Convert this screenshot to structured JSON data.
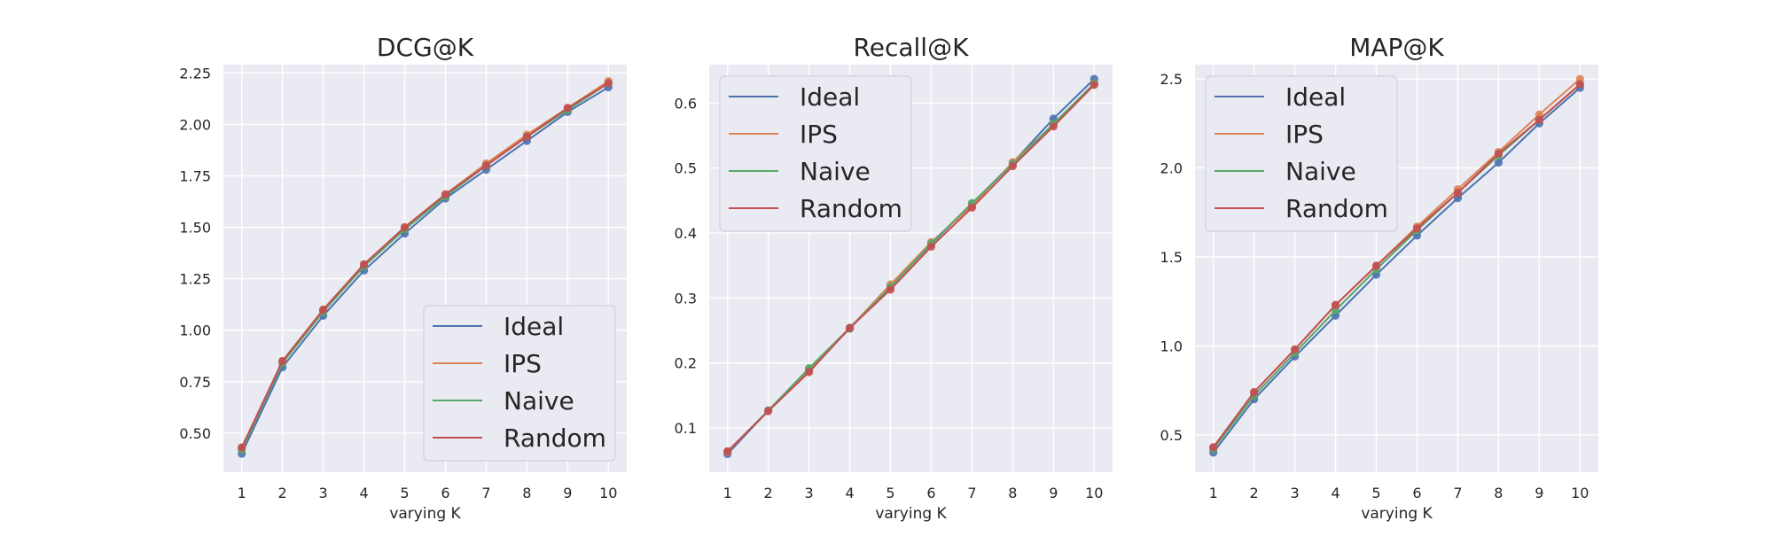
{
  "colors": {
    "Ideal": "#4c72b0",
    "IPS": "#dd8452",
    "Naive": "#55a868",
    "Random": "#c44e52",
    "panel_bg": "#eaeaf2"
  },
  "chart_data": [
    {
      "type": "line",
      "title": "DCG@K",
      "xlabel": "varying K",
      "ylabel": "",
      "x": [
        1,
        2,
        3,
        4,
        5,
        6,
        7,
        8,
        9,
        10
      ],
      "x_ticks": [
        "1",
        "2",
        "3",
        "4",
        "5",
        "6",
        "7",
        "8",
        "9",
        "10"
      ],
      "xlim": [
        0.55,
        10.45
      ],
      "ylim": [
        0.31,
        2.29
      ],
      "y_ticks": [
        0.5,
        0.75,
        1.0,
        1.25,
        1.5,
        1.75,
        2.0,
        2.25
      ],
      "y_tick_labels": [
        "0.50",
        "0.75",
        "1.00",
        "1.25",
        "1.50",
        "1.75",
        "2.00",
        "2.25"
      ],
      "grid": true,
      "markers": true,
      "legend_position": "lower-right",
      "series": [
        {
          "name": "Ideal",
          "values": [
            0.4,
            0.82,
            1.07,
            1.29,
            1.47,
            1.64,
            1.78,
            1.92,
            2.06,
            2.18
          ]
        },
        {
          "name": "IPS",
          "values": [
            0.43,
            0.85,
            1.1,
            1.32,
            1.5,
            1.66,
            1.81,
            1.95,
            2.08,
            2.21
          ]
        },
        {
          "name": "Naive",
          "values": [
            0.42,
            0.84,
            1.09,
            1.31,
            1.49,
            1.65,
            1.8,
            1.94,
            2.07,
            2.2
          ]
        },
        {
          "name": "Random",
          "values": [
            0.43,
            0.85,
            1.1,
            1.32,
            1.5,
            1.66,
            1.8,
            1.94,
            2.08,
            2.2
          ]
        }
      ]
    },
    {
      "type": "line",
      "title": "Recall@K",
      "xlabel": "varying K",
      "ylabel": "",
      "x": [
        1,
        2,
        3,
        4,
        5,
        6,
        7,
        8,
        9,
        10
      ],
      "x_ticks": [
        "1",
        "2",
        "3",
        "4",
        "5",
        "6",
        "7",
        "8",
        "9",
        "10"
      ],
      "xlim": [
        0.55,
        10.45
      ],
      "ylim": [
        0.032,
        0.659
      ],
      "y_ticks": [
        0.1,
        0.2,
        0.3,
        0.4,
        0.5,
        0.6
      ],
      "y_tick_labels": [
        "0.1",
        "0.2",
        "0.3",
        "0.4",
        "0.5",
        "0.6"
      ],
      "grid": true,
      "markers": true,
      "legend_position": "upper-left",
      "series": [
        {
          "name": "Ideal",
          "values": [
            0.06,
            0.127,
            0.19,
            0.253,
            0.318,
            0.383,
            0.445,
            0.508,
            0.576,
            0.637
          ]
        },
        {
          "name": "IPS",
          "values": [
            0.063,
            0.127,
            0.188,
            0.254,
            0.321,
            0.386,
            0.442,
            0.509,
            0.567,
            0.63
          ]
        },
        {
          "name": "Naive",
          "values": [
            0.064,
            0.127,
            0.192,
            0.254,
            0.317,
            0.384,
            0.446,
            0.506,
            0.568,
            0.63
          ]
        },
        {
          "name": "Random",
          "values": [
            0.064,
            0.126,
            0.186,
            0.254,
            0.313,
            0.379,
            0.439,
            0.503,
            0.564,
            0.628
          ]
        }
      ]
    },
    {
      "type": "line",
      "title": "MAP@K",
      "xlabel": "varying K",
      "ylabel": "",
      "x": [
        1,
        2,
        3,
        4,
        5,
        6,
        7,
        8,
        9,
        10
      ],
      "x_ticks": [
        "1",
        "2",
        "3",
        "4",
        "5",
        "6",
        "7",
        "8",
        "9",
        "10"
      ],
      "xlim": [
        0.55,
        10.45
      ],
      "ylim": [
        0.29,
        2.58
      ],
      "y_ticks": [
        0.5,
        1.0,
        1.5,
        2.0,
        2.5
      ],
      "y_tick_labels": [
        "0.5",
        "1.0",
        "1.5",
        "2.0",
        "2.5"
      ],
      "grid": true,
      "markers": true,
      "legend_position": "upper-left",
      "series": [
        {
          "name": "Ideal",
          "values": [
            0.4,
            0.7,
            0.94,
            1.17,
            1.4,
            1.62,
            1.83,
            2.03,
            2.25,
            2.45
          ]
        },
        {
          "name": "IPS",
          "values": [
            0.43,
            0.74,
            0.98,
            1.23,
            1.45,
            1.67,
            1.88,
            2.09,
            2.3,
            2.5
          ]
        },
        {
          "name": "Naive",
          "values": [
            0.42,
            0.72,
            0.96,
            1.2,
            1.43,
            1.65,
            1.86,
            2.07,
            2.27,
            2.47
          ]
        },
        {
          "name": "Random",
          "values": [
            0.43,
            0.74,
            0.98,
            1.23,
            1.45,
            1.66,
            1.86,
            2.08,
            2.27,
            2.47
          ]
        }
      ]
    }
  ]
}
